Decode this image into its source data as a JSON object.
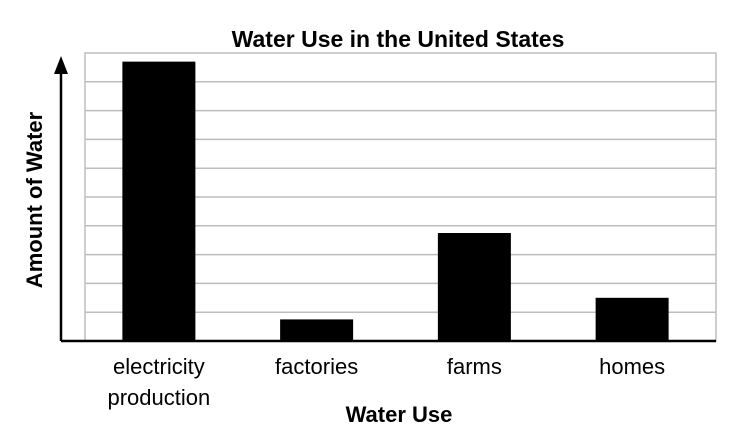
{
  "chart_data": {
    "type": "bar",
    "title": "Water Use in the United States",
    "xlabel": "Water Use",
    "ylabel": "Amount of Water",
    "categories": [
      [
        "electricity",
        "production"
      ],
      [
        "factories"
      ],
      [
        "farms"
      ],
      [
        "homes"
      ]
    ],
    "values": [
      9.7,
      0.75,
      3.75,
      1.5
    ],
    "ylim": [
      0,
      10
    ],
    "grid": true,
    "y_ticks_labeled": false,
    "colors": {
      "bar": "#000000",
      "grid": "#bdbdbd",
      "axis": "#000000",
      "background": "#ffffff"
    }
  }
}
